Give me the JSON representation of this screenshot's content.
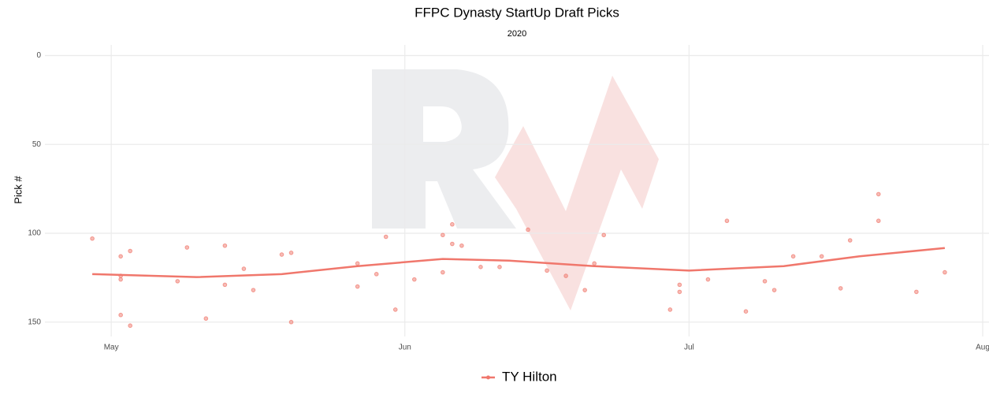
{
  "chart_data": {
    "type": "scatter",
    "title": "FFPC Dynasty StartUp Draft Picks",
    "subtitle": "2020",
    "y_label": "Pick #",
    "xlim": [
      "2020-04-24",
      "2020-08-01"
    ],
    "xticks": [
      {
        "value": "2020-05-01",
        "label": "May"
      },
      {
        "value": "2020-06-01",
        "label": "Jun"
      },
      {
        "value": "2020-07-01",
        "label": "Jul"
      },
      {
        "value": "2020-08-01",
        "label": "Aug"
      }
    ],
    "ylim": [
      -6,
      155
    ],
    "y_reversed": true,
    "yticks": [
      0,
      50,
      100,
      150
    ],
    "grid": true,
    "legend": "bottom",
    "series": [
      {
        "name": "TY Hilton",
        "color": "#f0776c",
        "x": [
          "2020-04-29",
          "2020-05-02",
          "2020-05-02",
          "2020-05-02",
          "2020-05-02",
          "2020-05-03",
          "2020-05-03",
          "2020-05-08",
          "2020-05-09",
          "2020-05-11",
          "2020-05-13",
          "2020-05-13",
          "2020-05-15",
          "2020-05-16",
          "2020-05-19",
          "2020-05-20",
          "2020-05-20",
          "2020-05-27",
          "2020-05-27",
          "2020-05-29",
          "2020-05-30",
          "2020-05-31",
          "2020-06-02",
          "2020-06-05",
          "2020-06-05",
          "2020-06-06",
          "2020-06-06",
          "2020-06-07",
          "2020-06-09",
          "2020-06-11",
          "2020-06-14",
          "2020-06-16",
          "2020-06-18",
          "2020-06-20",
          "2020-06-21",
          "2020-06-22",
          "2020-06-29",
          "2020-06-30",
          "2020-06-30",
          "2020-07-03",
          "2020-07-05",
          "2020-07-07",
          "2020-07-09",
          "2020-07-10",
          "2020-07-12",
          "2020-07-15",
          "2020-07-17",
          "2020-07-18",
          "2020-07-21",
          "2020-07-21",
          "2020-07-25",
          "2020-07-28"
        ],
        "values": [
          103,
          113,
          124,
          126,
          146,
          110,
          152,
          127,
          108,
          148,
          107,
          129,
          120,
          132,
          112,
          111,
          150,
          117,
          130,
          123,
          102,
          143,
          126,
          101,
          122,
          95,
          106,
          107,
          119,
          119,
          98,
          121,
          124,
          132,
          117,
          101,
          143,
          129,
          133,
          126,
          93,
          144,
          127,
          132,
          113,
          113,
          131,
          104,
          78,
          93,
          133,
          122
        ],
        "trend": {
          "x": [
            "2020-04-29",
            "2020-05-10",
            "2020-05-19",
            "2020-05-27",
            "2020-06-05",
            "2020-06-12",
            "2020-06-21",
            "2020-07-01",
            "2020-07-11",
            "2020-07-19",
            "2020-07-28"
          ],
          "values": [
            123,
            124.7,
            123,
            118.5,
            114.5,
            115.4,
            118.5,
            121,
            118.5,
            113,
            108.3
          ]
        }
      }
    ]
  }
}
